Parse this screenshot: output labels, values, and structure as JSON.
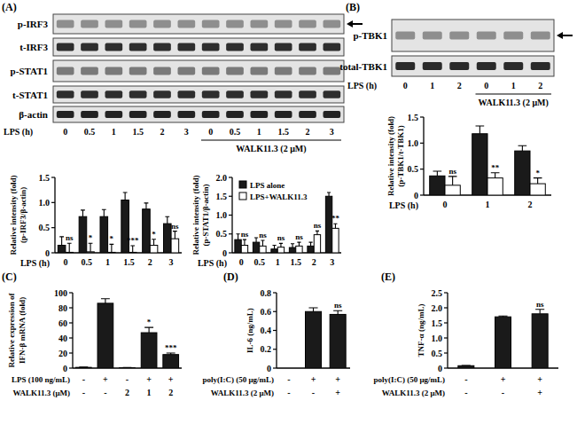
{
  "panels": [
    {
      "label": "(A)",
      "blot": {
        "rows": [
          "p-IRF3",
          "t-IRF3",
          "p-STAT1",
          "t-STAT1",
          "β-actin"
        ],
        "x_label": "LPS (h)",
        "groups": [
          {
            "lanes": [
              "0",
              "0.5",
              "1",
              "1.5",
              "2",
              "3"
            ]
          },
          {
            "label": "WALK11.3 (2 μM)",
            "lanes": [
              "0",
              "0.5",
              "1",
              "1.5",
              "2",
              "3"
            ]
          }
        ]
      }
    },
    {
      "label": "(B)",
      "blot": {
        "rows": [
          "p-TBK1",
          "total-TBK1"
        ],
        "x_label": "LPS (h)",
        "groups": [
          {
            "lanes": [
              "0",
              "1",
              "2"
            ]
          },
          {
            "label": "WALK11.3 (2 μM)",
            "lanes": [
              "0",
              "1",
              "2"
            ]
          }
        ]
      }
    },
    {
      "label": "(C)"
    },
    {
      "label": "(D)"
    },
    {
      "label": "(E)"
    }
  ],
  "chart_data": [
    {
      "type": "bar",
      "y_label": [
        "Relative intensity (fold)",
        "(p-IRF3/β-actin)"
      ],
      "x_label": "LPS (h)",
      "categories": [
        "0",
        "0.5",
        "1",
        "1.5",
        "2",
        "3"
      ],
      "series": [
        {
          "color": "#1a1a1a",
          "values": [
            0.15,
            0.72,
            0.72,
            1.05,
            0.87,
            0.58
          ],
          "errors": [
            0.17,
            0.13,
            0.14,
            0.15,
            0.12,
            0.14
          ]
        },
        {
          "color": "#ffffff",
          "values": [
            0.01,
            0.02,
            0.01,
            0.01,
            0.15,
            0.28
          ],
          "errors": [
            0.18,
            0.17,
            0.16,
            0.13,
            0.12,
            0.15
          ]
        }
      ],
      "significance": [
        "ns",
        "*",
        "*",
        "***",
        "*",
        "ns"
      ],
      "ylim": [
        0,
        1.5
      ],
      "yticks": [
        0,
        0.5,
        {
          "value": 1,
          "label": "1.0"
        },
        1.5
      ]
    },
    {
      "type": "bar",
      "y_label": [
        "Relative intensity (fold)",
        "(p-STAT1/β-actin)"
      ],
      "x_label": "LPS (h)",
      "categories": [
        "0",
        "0.5",
        "1",
        "1.5",
        "2",
        "3"
      ],
      "series": [
        {
          "name": "LPS alone",
          "color": "#1a1a1a",
          "values": [
            0.35,
            0.28,
            0.1,
            0.14,
            0.18,
            1.5
          ],
          "errors": [
            0.15,
            0.12,
            0.1,
            0.1,
            0.1,
            0.1
          ]
        },
        {
          "name": "LPS+WALK11.3",
          "color": "#ffffff",
          "values": [
            0.2,
            0.18,
            0.15,
            0.18,
            0.48,
            0.65
          ],
          "errors": [
            0.15,
            0.15,
            0.1,
            0.1,
            0.1,
            0.12
          ]
        }
      ],
      "significance": [
        "ns",
        "ns",
        "ns",
        "ns",
        "ns",
        "**"
      ],
      "legend": "top-left",
      "ylim": [
        0,
        2
      ],
      "yticks": [
        0,
        0.5,
        {
          "value": 1,
          "label": "1.0"
        },
        1.5,
        {
          "value": 2,
          "label": "2.0"
        }
      ]
    },
    {
      "type": "bar",
      "y_label": [
        "Relative intensity (fold)",
        "(p-TBK1/t-TBK1)"
      ],
      "x_label": "LPS (h)",
      "categories": [
        "0",
        "1",
        "2"
      ],
      "series": [
        {
          "color": "#1a1a1a",
          "values": [
            0.37,
            1.18,
            0.85
          ],
          "errors": [
            0.09,
            0.15,
            0.1
          ]
        },
        {
          "color": "#ffffff",
          "values": [
            0.19,
            0.33,
            0.22
          ],
          "errors": [
            0.17,
            0.1,
            0.11
          ]
        }
      ],
      "significance": [
        "ns",
        "**",
        "*"
      ],
      "ylim": [
        0,
        1.5
      ],
      "yticks": [
        0,
        0.5,
        {
          "value": 1,
          "label": "1.0"
        },
        1.5
      ]
    },
    {
      "type": "bar",
      "y_label": [
        "Relative expression of",
        "IFN-β mRNA (fold)"
      ],
      "categories": [
        null,
        null,
        null,
        null,
        null
      ],
      "values": [
        1,
        86,
        0.5,
        47,
        18
      ],
      "errors": [
        0.5,
        6,
        0.3,
        7,
        2
      ],
      "color": "#1a1a1a",
      "significance": [
        null,
        null,
        null,
        "*",
        "***"
      ],
      "conditions": [
        {
          "label": "LPS (100 ng/mL)",
          "values": [
            "-",
            "+",
            "-",
            "+",
            "+"
          ]
        },
        {
          "label": "WALK11.3 (μM)",
          "values": [
            "-",
            "-",
            "2",
            "1",
            "2"
          ]
        }
      ],
      "ylim": [
        0,
        100
      ],
      "yticks": [
        0,
        20,
        40,
        60,
        80,
        100
      ]
    },
    {
      "type": "bar",
      "y_label": [
        "IL-6 (ng/mL)"
      ],
      "categories": [
        null,
        null,
        null
      ],
      "values": [
        0,
        0.6,
        0.57
      ],
      "errors": [
        null,
        0.04,
        0.04
      ],
      "color": "#1a1a1a",
      "significance": [
        null,
        null,
        "ns"
      ],
      "conditions": [
        {
          "label": "poly(I:C) (50 μg/mL)",
          "values": [
            "-",
            "+",
            "+"
          ]
        },
        {
          "label": "WALK11.3 (2 μM)",
          "values": [
            "-",
            "-",
            "+"
          ]
        }
      ],
      "ylim": [
        0,
        0.8
      ],
      "yticks": [
        0,
        0.2,
        0.4,
        0.6,
        0.8
      ]
    },
    {
      "type": "bar",
      "y_label": [
        "TNF-α (ng/mL)"
      ],
      "categories": [
        null,
        null,
        null
      ],
      "values": [
        0.08,
        1.7,
        1.8
      ],
      "errors": [
        0.01,
        0.03,
        0.15
      ],
      "color": "#1a1a1a",
      "significance": [
        null,
        null,
        "ns"
      ],
      "conditions": [
        {
          "label": "poly(I:C) (50 μg/mL)",
          "values": [
            "-",
            "+",
            "+"
          ]
        },
        {
          "label": "WALK11.3 (2 μM)",
          "values": [
            "-",
            "-",
            "+"
          ]
        }
      ],
      "ylim": [
        0,
        2.5
      ],
      "yticks": [
        0,
        0.5,
        {
          "value": 1,
          "label": "1.0"
        },
        1.5,
        {
          "value": 2,
          "label": "2.0"
        },
        2.5
      ]
    }
  ]
}
